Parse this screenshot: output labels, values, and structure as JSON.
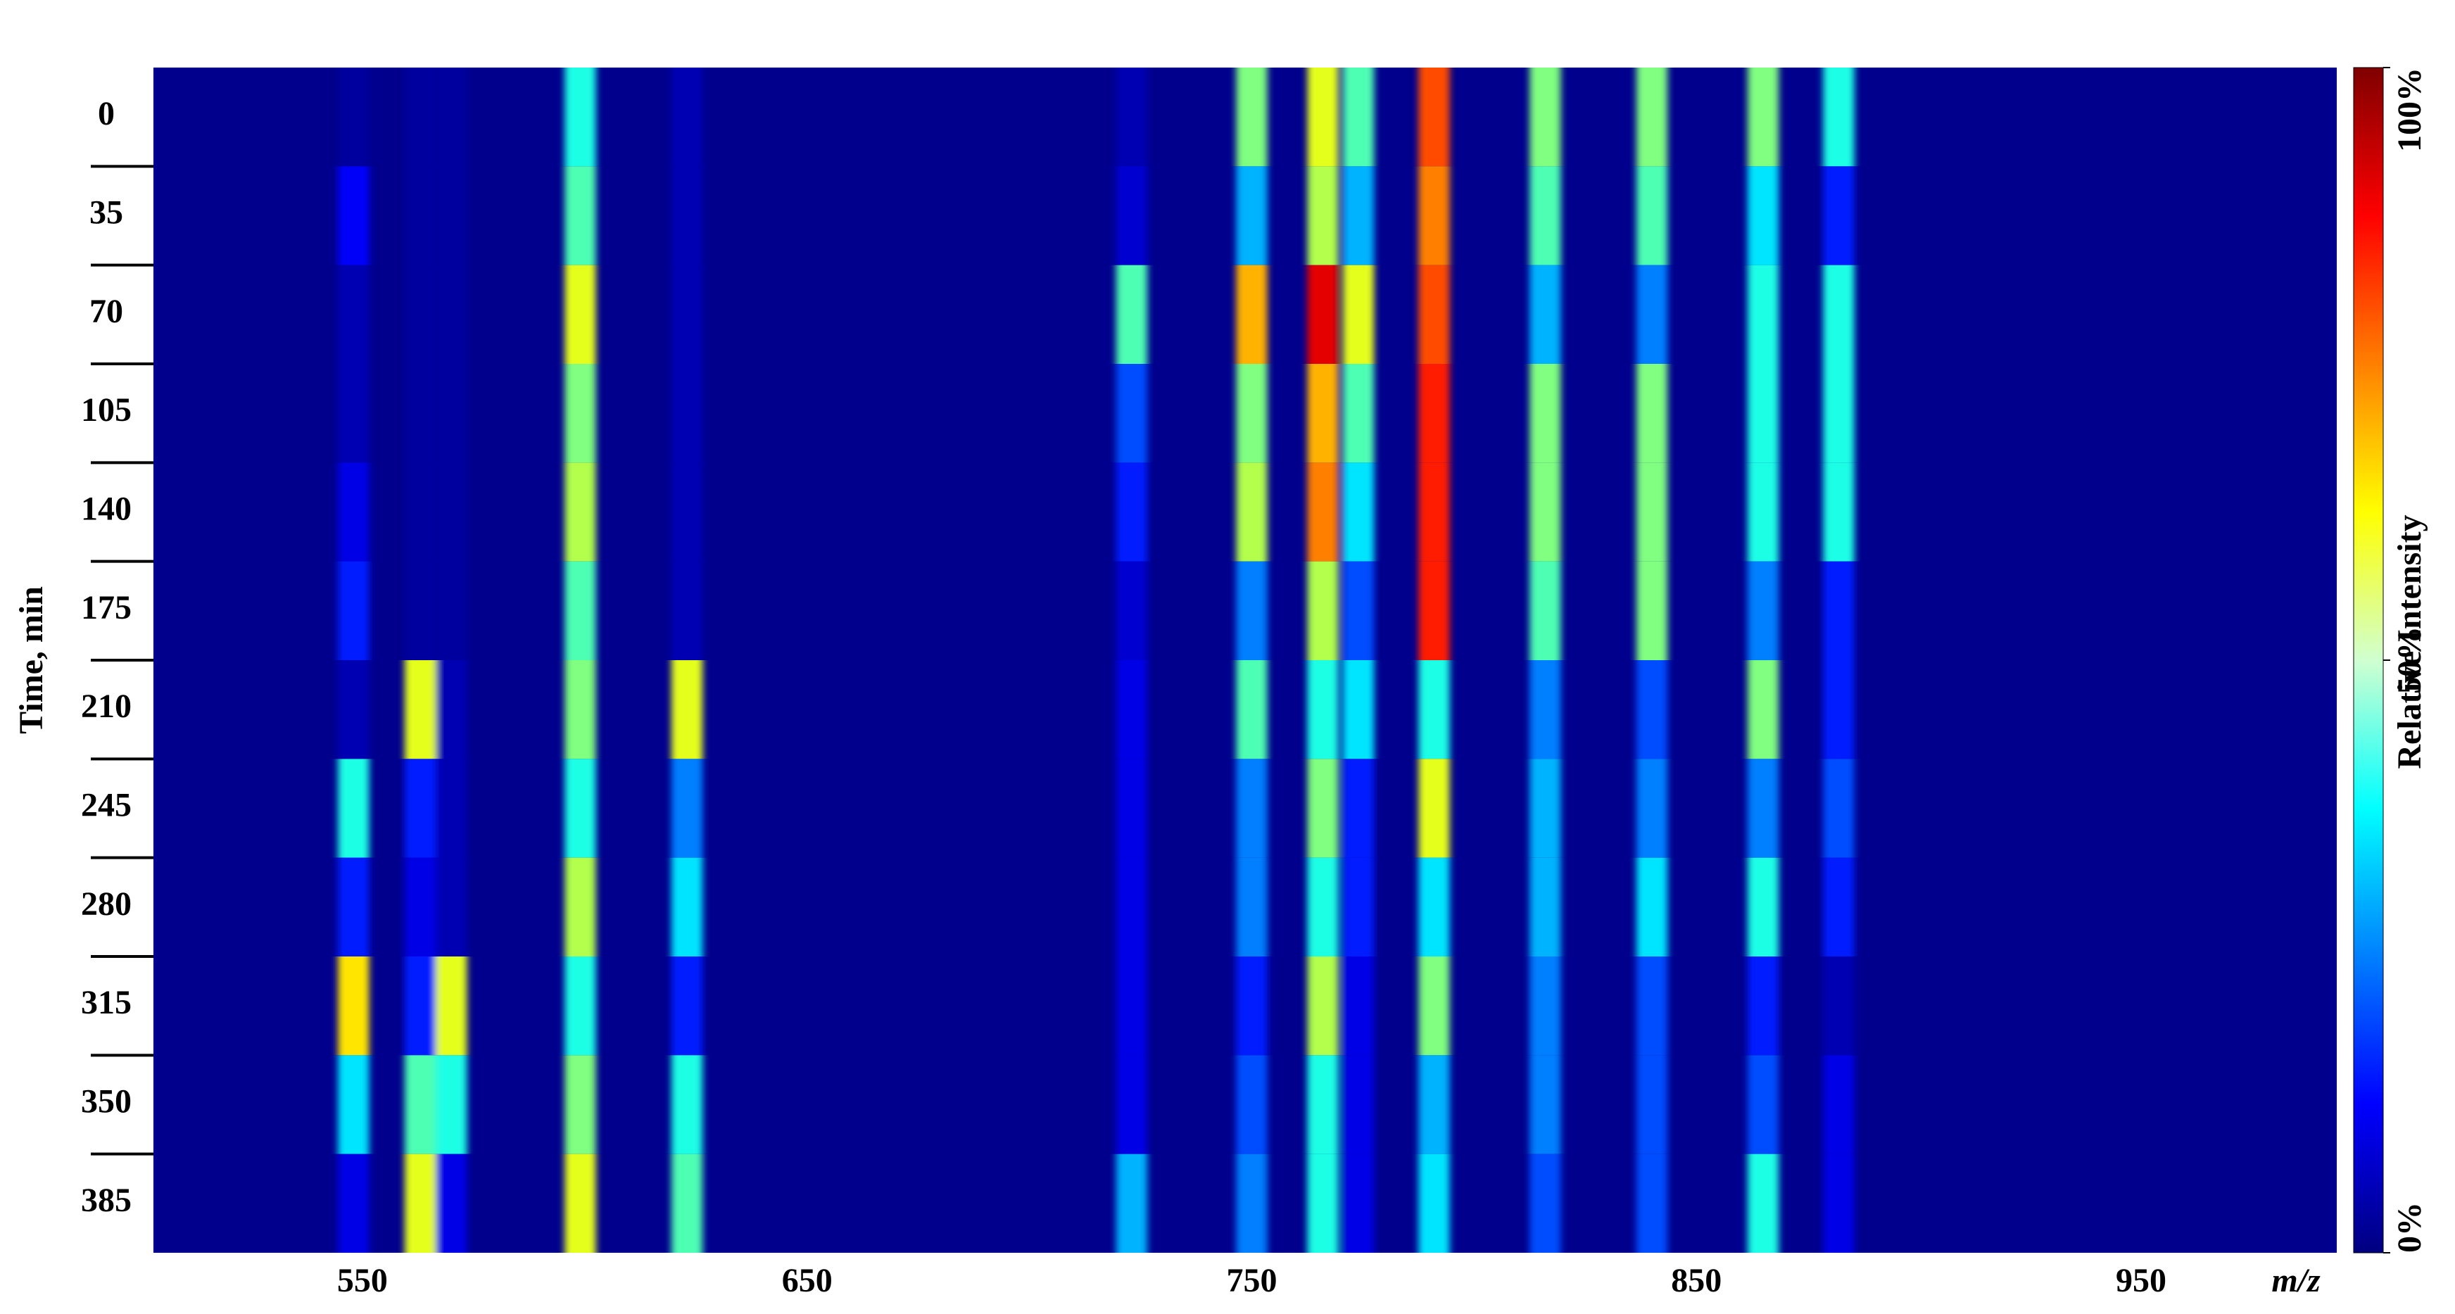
{
  "chart_data": {
    "type": "heatmap",
    "y_label": "Time, min",
    "x_label": "m/z",
    "colorbar_label": "Relative Intensity",
    "colormap": "jet",
    "y": [
      0,
      35,
      70,
      105,
      140,
      175,
      210,
      245,
      280,
      315,
      350,
      385
    ],
    "x": [
      548,
      563,
      570,
      599,
      623,
      723,
      750,
      766,
      774,
      791,
      816,
      840,
      865,
      882
    ],
    "values": [
      [
        3,
        3,
        3,
        40,
        5,
        5,
        50,
        60,
        45,
        80,
        50,
        50,
        50,
        40
      ],
      [
        12,
        3,
        3,
        45,
        5,
        8,
        30,
        55,
        30,
        75,
        45,
        45,
        35,
        15
      ],
      [
        5,
        3,
        3,
        60,
        5,
        45,
        70,
        90,
        60,
        80,
        30,
        25,
        40,
        40
      ],
      [
        5,
        3,
        3,
        50,
        5,
        20,
        50,
        70,
        45,
        85,
        50,
        50,
        40,
        40
      ],
      [
        10,
        3,
        3,
        55,
        5,
        15,
        55,
        75,
        35,
        85,
        50,
        50,
        40,
        40
      ],
      [
        15,
        3,
        3,
        45,
        5,
        8,
        25,
        55,
        20,
        85,
        45,
        50,
        25,
        15
      ],
      [
        5,
        60,
        5,
        50,
        60,
        10,
        45,
        40,
        35,
        40,
        25,
        20,
        50,
        15
      ],
      [
        40,
        15,
        5,
        40,
        25,
        10,
        25,
        50,
        15,
        60,
        30,
        25,
        25,
        20
      ],
      [
        15,
        10,
        5,
        55,
        35,
        10,
        25,
        40,
        15,
        35,
        30,
        35,
        40,
        15
      ],
      [
        65,
        15,
        60,
        40,
        15,
        10,
        15,
        55,
        10,
        50,
        25,
        20,
        15,
        5
      ],
      [
        35,
        45,
        40,
        50,
        40,
        10,
        20,
        40,
        10,
        30,
        25,
        20,
        20,
        10
      ],
      [
        10,
        60,
        10,
        60,
        45,
        30,
        25,
        40,
        10,
        35,
        20,
        20,
        40,
        10
      ]
    ],
    "xlim": [
      503,
      994
    ],
    "xticks": [
      550,
      650,
      750,
      850,
      950
    ],
    "clim": [
      0,
      100
    ],
    "cticks": [
      {
        "value": 0,
        "label": "0%"
      },
      {
        "value": 50,
        "label": "50%"
      },
      {
        "value": 100,
        "label": "100%"
      }
    ]
  }
}
